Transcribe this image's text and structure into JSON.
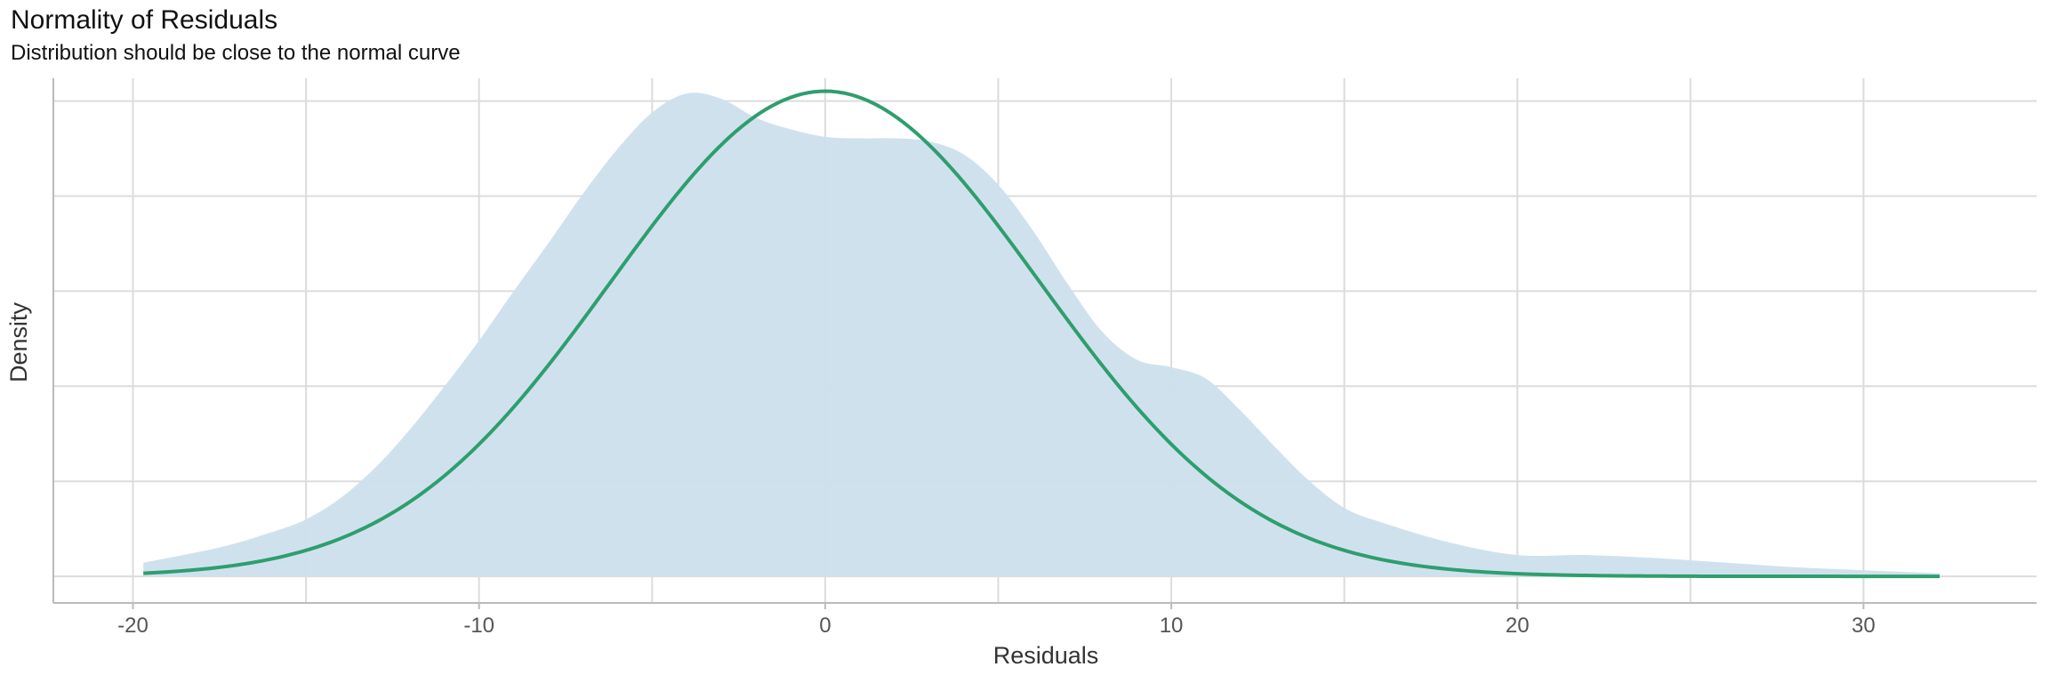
{
  "chart_data": {
    "type": "area",
    "title": "Normality of Residuals",
    "subtitle": "Distribution should be close to the normal curve",
    "xlabel": "Residuals",
    "ylabel": "Density",
    "xlim": [
      -22.3,
      35.0
    ],
    "ylim": [
      -0.0035,
      0.0655
    ],
    "x_ticks": [
      -20,
      -10,
      0,
      10,
      20,
      30
    ],
    "x_tick_labels": [
      "-20",
      "-10",
      "0",
      "10",
      "20",
      "30"
    ],
    "x_minor_gridlines": [
      -15,
      -5,
      5,
      15,
      25
    ],
    "y_gridlines": [
      0,
      0.0125,
      0.025,
      0.0375,
      0.05,
      0.0625
    ],
    "y_tick_labels_shown": false,
    "grid": true,
    "legend": "none",
    "series": [
      {
        "kind": "density-area",
        "color": "#cddfed",
        "x": [
          -19.7,
          -17.5,
          -16,
          -15,
          -14,
          -13,
          -12,
          -11,
          -10,
          -9,
          -8,
          -7,
          -6,
          -5,
          -4,
          -3,
          -2,
          -1,
          0,
          1,
          2,
          3,
          4,
          5,
          6,
          7,
          8,
          9,
          10,
          11,
          12,
          13,
          14,
          15,
          16,
          18,
          20,
          22,
          24,
          26,
          28,
          30,
          32.2
        ],
        "y": [
          0.0018,
          0.0038,
          0.0058,
          0.0075,
          0.0103,
          0.0143,
          0.0193,
          0.025,
          0.031,
          0.0375,
          0.0438,
          0.0503,
          0.0562,
          0.061,
          0.0635,
          0.0628,
          0.0603,
          0.0588,
          0.0578,
          0.0576,
          0.0576,
          0.0572,
          0.0555,
          0.0515,
          0.0455,
          0.0385,
          0.0322,
          0.0285,
          0.0275,
          0.026,
          0.0218,
          0.017,
          0.0125,
          0.009,
          0.0072,
          0.0045,
          0.0028,
          0.0028,
          0.0024,
          0.0018,
          0.0012,
          0.0008,
          0.0004
        ]
      },
      {
        "kind": "normal-curve",
        "color": "#2e9e6e",
        "mean": 0,
        "sd": 6.2,
        "peak": 0.0638,
        "x_range": [
          -19.7,
          32.2
        ]
      }
    ]
  }
}
